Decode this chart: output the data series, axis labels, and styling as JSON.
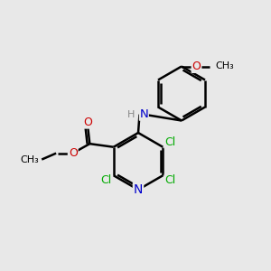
{
  "background_color": "#e8e8e8",
  "bond_color": "#000000",
  "bond_width": 1.8,
  "atom_colors": {
    "C": "#000000",
    "N": "#0000cc",
    "O": "#cc0000",
    "Cl": "#00aa00",
    "H": "#888888"
  },
  "font_size": 9,
  "figsize": [
    3.0,
    3.0
  ],
  "dpi": 100
}
